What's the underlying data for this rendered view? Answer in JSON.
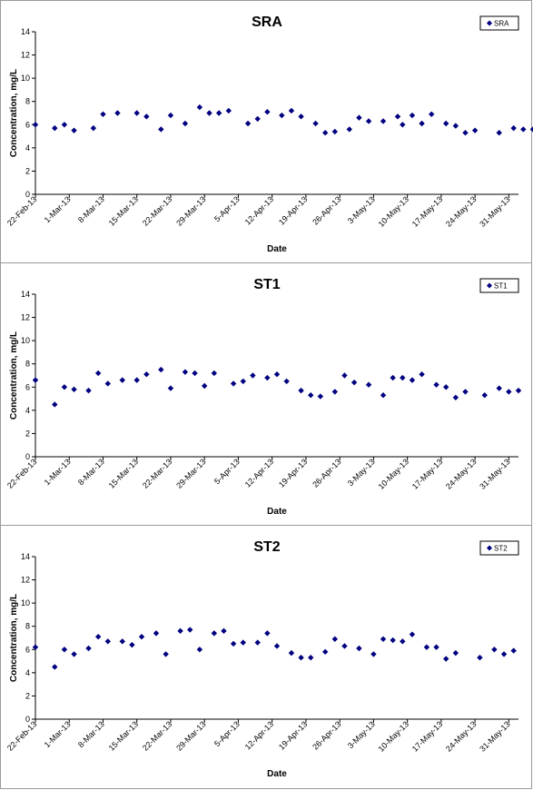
{
  "chart_data": [
    {
      "type": "scatter",
      "title": "SRA",
      "xlabel": "Date",
      "ylabel": "Concentration, mg/L",
      "legend": [
        "SRA"
      ],
      "legend_position": "top-right",
      "ylim": [
        0,
        14
      ],
      "yticks": [
        "0",
        "2",
        "4",
        "6",
        "8",
        "10",
        "12",
        "14"
      ],
      "xlim": [
        "2013-02-22",
        "2013-06-02"
      ],
      "xticks": [
        "22-Feb-13",
        "1-Mar-13",
        "8-Mar-13",
        "15-Mar-13",
        "22-Mar-13",
        "29-Mar-13",
        "5-Apr-13",
        "12-Apr-13",
        "19-Apr-13",
        "26-Apr-13",
        "3-May-13",
        "10-May-13",
        "17-May-13",
        "24-May-13",
        "31-May-13"
      ],
      "marker_color": "#000080",
      "series": [
        {
          "name": "SRA",
          "points": [
            {
              "x": "2013-02-22",
              "y": 6.0
            },
            {
              "x": "2013-02-26",
              "y": 5.7
            },
            {
              "x": "2013-02-28",
              "y": 6.0
            },
            {
              "x": "2013-03-02",
              "y": 5.5
            },
            {
              "x": "2013-03-06",
              "y": 5.7
            },
            {
              "x": "2013-03-08",
              "y": 6.9
            },
            {
              "x": "2013-03-11",
              "y": 7.0
            },
            {
              "x": "2013-03-15",
              "y": 7.0
            },
            {
              "x": "2013-03-17",
              "y": 6.7
            },
            {
              "x": "2013-03-20",
              "y": 5.6
            },
            {
              "x": "2013-03-22",
              "y": 6.8
            },
            {
              "x": "2013-03-25",
              "y": 6.1
            },
            {
              "x": "2013-03-28",
              "y": 7.5
            },
            {
              "x": "2013-03-30",
              "y": 7.0
            },
            {
              "x": "2013-04-01",
              "y": 7.0
            },
            {
              "x": "2013-04-03",
              "y": 7.2
            },
            {
              "x": "2013-04-07",
              "y": 6.1
            },
            {
              "x": "2013-04-09",
              "y": 6.5
            },
            {
              "x": "2013-04-11",
              "y": 7.1
            },
            {
              "x": "2013-04-14",
              "y": 6.8
            },
            {
              "x": "2013-04-16",
              "y": 7.2
            },
            {
              "x": "2013-04-18",
              "y": 6.7
            },
            {
              "x": "2013-04-21",
              "y": 6.1
            },
            {
              "x": "2013-04-23",
              "y": 5.3
            },
            {
              "x": "2013-04-25",
              "y": 5.4
            },
            {
              "x": "2013-04-28",
              "y": 5.6
            },
            {
              "x": "2013-04-30",
              "y": 6.6
            },
            {
              "x": "2013-05-02",
              "y": 6.3
            },
            {
              "x": "2013-05-05",
              "y": 6.3
            },
            {
              "x": "2013-05-08",
              "y": 6.7
            },
            {
              "x": "2013-05-09",
              "y": 6.0
            },
            {
              "x": "2013-05-11",
              "y": 6.8
            },
            {
              "x": "2013-05-13",
              "y": 6.1
            },
            {
              "x": "2013-05-15",
              "y": 6.9
            },
            {
              "x": "2013-05-18",
              "y": 6.1
            },
            {
              "x": "2013-05-20",
              "y": 5.9
            },
            {
              "x": "2013-05-22",
              "y": 5.3
            },
            {
              "x": "2013-05-24",
              "y": 5.5
            },
            {
              "x": "2013-05-29",
              "y": 5.3
            },
            {
              "x": "2013-06-01",
              "y": 5.7
            },
            {
              "x": "2013-06-03",
              "y": 5.6
            },
            {
              "x": "2013-06-05",
              "y": 5.6
            }
          ]
        }
      ]
    },
    {
      "type": "scatter",
      "title": "ST1",
      "xlabel": "Date",
      "ylabel": "Concentration, mg/L",
      "legend": [
        "ST1"
      ],
      "legend_position": "top-right",
      "ylim": [
        0,
        14
      ],
      "yticks": [
        "0",
        "2",
        "4",
        "6",
        "8",
        "10",
        "12",
        "14"
      ],
      "xlim": [
        "2013-02-22",
        "2013-06-02"
      ],
      "xticks": [
        "22-Feb-13",
        "1-Mar-13",
        "8-Mar-13",
        "15-Mar-13",
        "22-Mar-13",
        "29-Mar-13",
        "5-Apr-13",
        "12-Apr-13",
        "19-Apr-13",
        "26-Apr-13",
        "3-May-13",
        "10-May-13",
        "17-May-13",
        "24-May-13",
        "31-May-13"
      ],
      "marker_color": "#000080",
      "series": [
        {
          "name": "ST1",
          "points": [
            {
              "x": "2013-02-22",
              "y": 6.6
            },
            {
              "x": "2013-02-26",
              "y": 4.5
            },
            {
              "x": "2013-02-28",
              "y": 6.0
            },
            {
              "x": "2013-03-02",
              "y": 5.8
            },
            {
              "x": "2013-03-05",
              "y": 5.7
            },
            {
              "x": "2013-03-07",
              "y": 7.2
            },
            {
              "x": "2013-03-09",
              "y": 6.3
            },
            {
              "x": "2013-03-12",
              "y": 6.6
            },
            {
              "x": "2013-03-15",
              "y": 6.6
            },
            {
              "x": "2013-03-17",
              "y": 7.1
            },
            {
              "x": "2013-03-20",
              "y": 7.5
            },
            {
              "x": "2013-03-22",
              "y": 5.9
            },
            {
              "x": "2013-03-25",
              "y": 7.3
            },
            {
              "x": "2013-03-27",
              "y": 7.2
            },
            {
              "x": "2013-03-29",
              "y": 6.1
            },
            {
              "x": "2013-03-31",
              "y": 7.2
            },
            {
              "x": "2013-04-04",
              "y": 6.3
            },
            {
              "x": "2013-04-06",
              "y": 6.5
            },
            {
              "x": "2013-04-08",
              "y": 7.0
            },
            {
              "x": "2013-04-11",
              "y": 6.8
            },
            {
              "x": "2013-04-13",
              "y": 7.1
            },
            {
              "x": "2013-04-15",
              "y": 6.5
            },
            {
              "x": "2013-04-18",
              "y": 5.7
            },
            {
              "x": "2013-04-20",
              "y": 5.3
            },
            {
              "x": "2013-04-22",
              "y": 5.2
            },
            {
              "x": "2013-04-25",
              "y": 5.6
            },
            {
              "x": "2013-04-27",
              "y": 7.0
            },
            {
              "x": "2013-04-29",
              "y": 6.4
            },
            {
              "x": "2013-05-02",
              "y": 6.2
            },
            {
              "x": "2013-05-05",
              "y": 5.3
            },
            {
              "x": "2013-05-07",
              "y": 6.8
            },
            {
              "x": "2013-05-09",
              "y": 6.8
            },
            {
              "x": "2013-05-11",
              "y": 6.6
            },
            {
              "x": "2013-05-13",
              "y": 7.1
            },
            {
              "x": "2013-05-16",
              "y": 6.2
            },
            {
              "x": "2013-05-18",
              "y": 6.0
            },
            {
              "x": "2013-05-20",
              "y": 5.1
            },
            {
              "x": "2013-05-22",
              "y": 5.6
            },
            {
              "x": "2013-05-26",
              "y": 5.3
            },
            {
              "x": "2013-05-29",
              "y": 5.9
            },
            {
              "x": "2013-05-31",
              "y": 5.6
            },
            {
              "x": "2013-06-02",
              "y": 5.7
            }
          ]
        }
      ]
    },
    {
      "type": "scatter",
      "title": "ST2",
      "xlabel": "Date",
      "ylabel": "Concentration, mg/L",
      "legend": [
        "ST2"
      ],
      "legend_position": "top-right",
      "ylim": [
        0,
        14
      ],
      "yticks": [
        "0",
        "2",
        "4",
        "6",
        "8",
        "10",
        "12",
        "14"
      ],
      "xlim": [
        "2013-02-22",
        "2013-06-02"
      ],
      "xticks": [
        "22-Feb-13",
        "1-Mar-13",
        "8-Mar-13",
        "15-Mar-13",
        "22-Mar-13",
        "29-Mar-13",
        "5-Apr-13",
        "12-Apr-13",
        "19-Apr-13",
        "26-Apr-13",
        "3-May-13",
        "10-May-13",
        "17-May-13",
        "24-May-13",
        "31-May-13"
      ],
      "marker_color": "#000080",
      "series": [
        {
          "name": "ST2",
          "points": [
            {
              "x": "2013-02-22",
              "y": 6.2
            },
            {
              "x": "2013-02-26",
              "y": 4.5
            },
            {
              "x": "2013-02-28",
              "y": 6.0
            },
            {
              "x": "2013-03-02",
              "y": 5.6
            },
            {
              "x": "2013-03-05",
              "y": 6.1
            },
            {
              "x": "2013-03-07",
              "y": 7.1
            },
            {
              "x": "2013-03-09",
              "y": 6.7
            },
            {
              "x": "2013-03-12",
              "y": 6.7
            },
            {
              "x": "2013-03-14",
              "y": 6.4
            },
            {
              "x": "2013-03-16",
              "y": 7.1
            },
            {
              "x": "2013-03-19",
              "y": 7.4
            },
            {
              "x": "2013-03-21",
              "y": 5.6
            },
            {
              "x": "2013-03-24",
              "y": 7.6
            },
            {
              "x": "2013-03-26",
              "y": 7.7
            },
            {
              "x": "2013-03-28",
              "y": 6.0
            },
            {
              "x": "2013-03-31",
              "y": 7.4
            },
            {
              "x": "2013-04-02",
              "y": 7.6
            },
            {
              "x": "2013-04-04",
              "y": 6.5
            },
            {
              "x": "2013-04-06",
              "y": 6.6
            },
            {
              "x": "2013-04-09",
              "y": 6.6
            },
            {
              "x": "2013-04-11",
              "y": 7.4
            },
            {
              "x": "2013-04-13",
              "y": 6.3
            },
            {
              "x": "2013-04-16",
              "y": 5.7
            },
            {
              "x": "2013-04-18",
              "y": 5.3
            },
            {
              "x": "2013-04-20",
              "y": 5.3
            },
            {
              "x": "2013-04-23",
              "y": 5.8
            },
            {
              "x": "2013-04-25",
              "y": 6.9
            },
            {
              "x": "2013-04-27",
              "y": 6.3
            },
            {
              "x": "2013-04-30",
              "y": 6.1
            },
            {
              "x": "2013-05-03",
              "y": 5.6
            },
            {
              "x": "2013-05-05",
              "y": 6.9
            },
            {
              "x": "2013-05-07",
              "y": 6.8
            },
            {
              "x": "2013-05-09",
              "y": 6.7
            },
            {
              "x": "2013-05-11",
              "y": 7.3
            },
            {
              "x": "2013-05-14",
              "y": 6.2
            },
            {
              "x": "2013-05-16",
              "y": 6.2
            },
            {
              "x": "2013-05-18",
              "y": 5.2
            },
            {
              "x": "2013-05-20",
              "y": 5.7
            },
            {
              "x": "2013-05-25",
              "y": 5.3
            },
            {
              "x": "2013-05-28",
              "y": 6.0
            },
            {
              "x": "2013-05-30",
              "y": 5.6
            },
            {
              "x": "2013-06-01",
              "y": 5.9
            }
          ]
        }
      ]
    }
  ]
}
